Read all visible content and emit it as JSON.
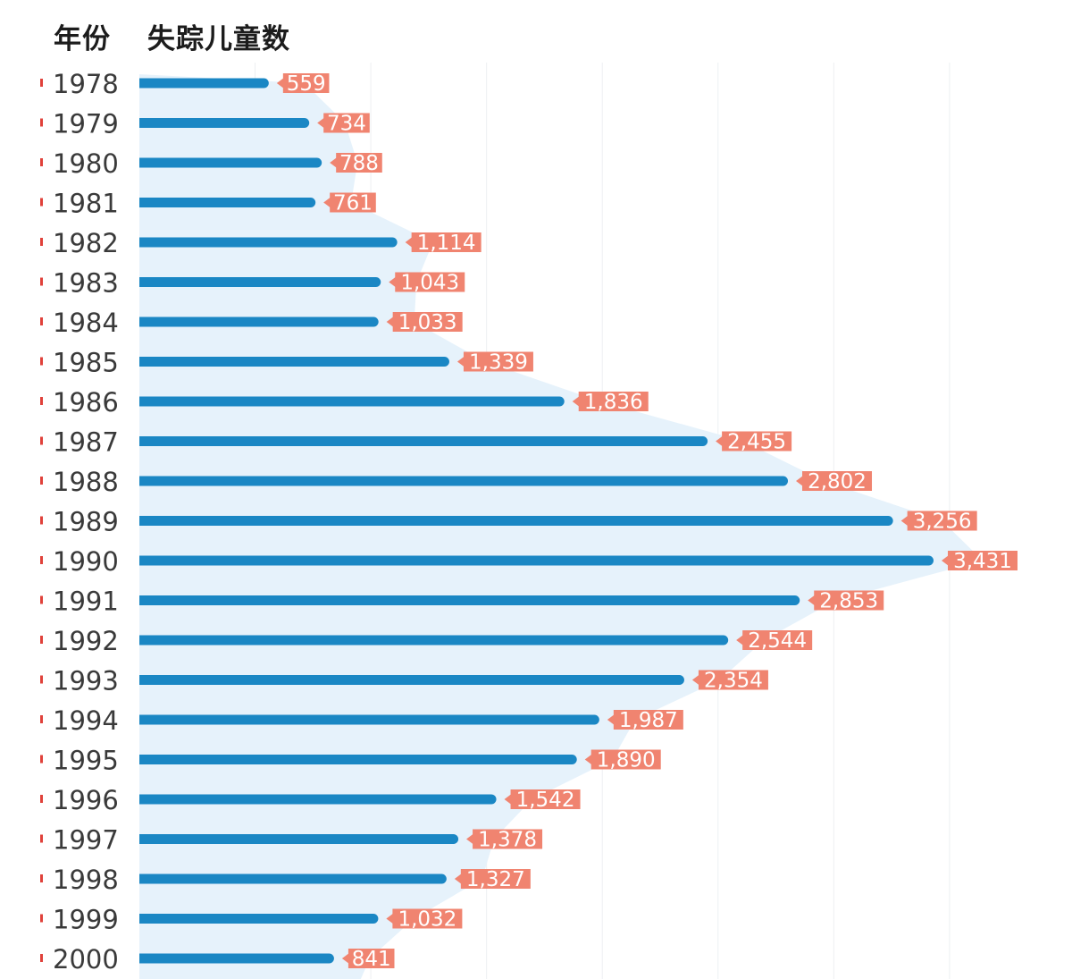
{
  "header": {
    "category_label": "年份",
    "value_label": "失踪儿童数"
  },
  "colors": {
    "bar": "#1a87c4",
    "area": "#e6f2fb",
    "label_bg": "#f08470",
    "tick_mark": "#e0413a",
    "gridline": "#eef0f2"
  },
  "chart_data": {
    "type": "bar",
    "orientation": "horizontal",
    "categories": [
      "1978",
      "1979",
      "1980",
      "1981",
      "1982",
      "1983",
      "1984",
      "1985",
      "1986",
      "1987",
      "1988",
      "1989",
      "1990",
      "1991",
      "1992",
      "1993",
      "1994",
      "1995",
      "1996",
      "1997",
      "1998",
      "1999",
      "2000"
    ],
    "values": [
      559,
      734,
      788,
      761,
      1114,
      1043,
      1033,
      1339,
      1836,
      2455,
      2802,
      3256,
      3431,
      2853,
      2544,
      2354,
      1987,
      1890,
      1542,
      1378,
      1327,
      1032,
      841
    ],
    "value_labels": [
      "559",
      "734",
      "788",
      "761",
      "1,114",
      "1,043",
      "1,033",
      "1,339",
      "1,836",
      "2,455",
      "2,802",
      "3,256",
      "3,431",
      "2,853",
      "2,544",
      "2,354",
      "1,987",
      "1,890",
      "1,542",
      "1,378",
      "1,327",
      "1,032",
      "841"
    ],
    "xlim": [
      0,
      3500
    ],
    "grid": true,
    "legend": "none"
  }
}
